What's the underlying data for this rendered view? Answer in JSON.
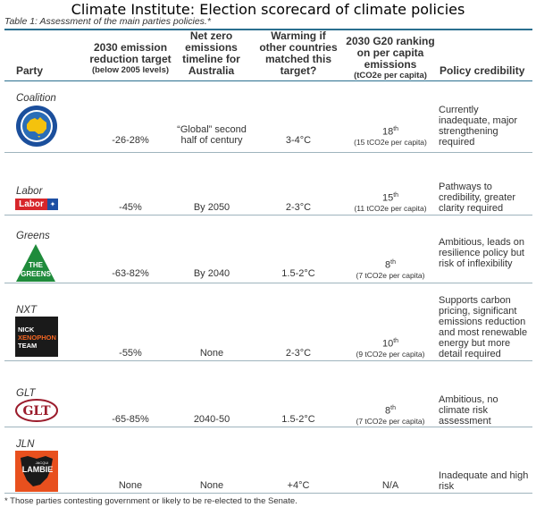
{
  "title": "Climate Institute: Election scorecard of climate policies",
  "subtitle": "Table 1: Assessment of the main parties policies.*",
  "headers": {
    "party": "Party",
    "target": "2030 emission reduction target",
    "target_sub": "(below 2005 levels)",
    "netzero": "Net zero emissions timeline for Australia",
    "warming": "Warming if other countries matched this target?",
    "ranking": "2030 G20 ranking on per capita emissions",
    "ranking_sub": "(tCO2e per capita)",
    "credibility": "Policy credibility"
  },
  "rows": [
    {
      "party": "Coalition",
      "target": "-26-28%",
      "netzero": "“Global” second half of century",
      "warming": "3-4°C",
      "rank": "18",
      "rank_sup": "th",
      "rank_sub": "(15 tCO2e per capita)",
      "credibility": "Currently inadequate, major strengthening required"
    },
    {
      "party": "Labor",
      "target": "-45%",
      "netzero": "By 2050",
      "warming": "2-3°C",
      "rank": "15",
      "rank_sup": "th",
      "rank_sub": "(11 tCO2e per capita)",
      "credibility": "Pathways to credibility, greater clarity required"
    },
    {
      "party": "Greens",
      "target": "-63-82%",
      "netzero": "By 2040",
      "warming": "1.5-2°C",
      "rank": "8",
      "rank_sup": "th",
      "rank_sub": "(7 tCO2e per capita)",
      "credibility": "Ambitious, leads on resilience policy but risk of inflexibility"
    },
    {
      "party": "NXT",
      "target": "-55%",
      "netzero": "None",
      "warming": "2-3°C",
      "rank": "10",
      "rank_sup": "th",
      "rank_sub": "(9 tCO2e per capita)",
      "credibility": "Supports carbon pricing, significant emissions reduction and most renewable energy but more detail required"
    },
    {
      "party": "GLT",
      "target": "-65-85%",
      "netzero": "2040-50",
      "warming": "1.5-2°C",
      "rank": "8",
      "rank_sup": "th",
      "rank_sub": "(7 tCO2e per capita)",
      "credibility": "Ambitious, no climate risk assessment"
    },
    {
      "party": "JLN",
      "target": "None",
      "netzero": "None",
      "warming": "+4°C",
      "rank": "N/A",
      "rank_sup": "",
      "rank_sub": "",
      "credibility": "Inadequate and high risk"
    }
  ],
  "logos": {
    "labor": "Labor",
    "greens_line1": "THE",
    "greens_line2": "GREENS",
    "nxt_line1": "NICK",
    "nxt_line2": "XENOPHON",
    "nxt_line3": "TEAM",
    "glt": "GLT",
    "jln_small": "JACQUI",
    "jln": "LAMBIE"
  },
  "footnote": "* Those parties contesting government or likely to be re-elected to the Senate."
}
